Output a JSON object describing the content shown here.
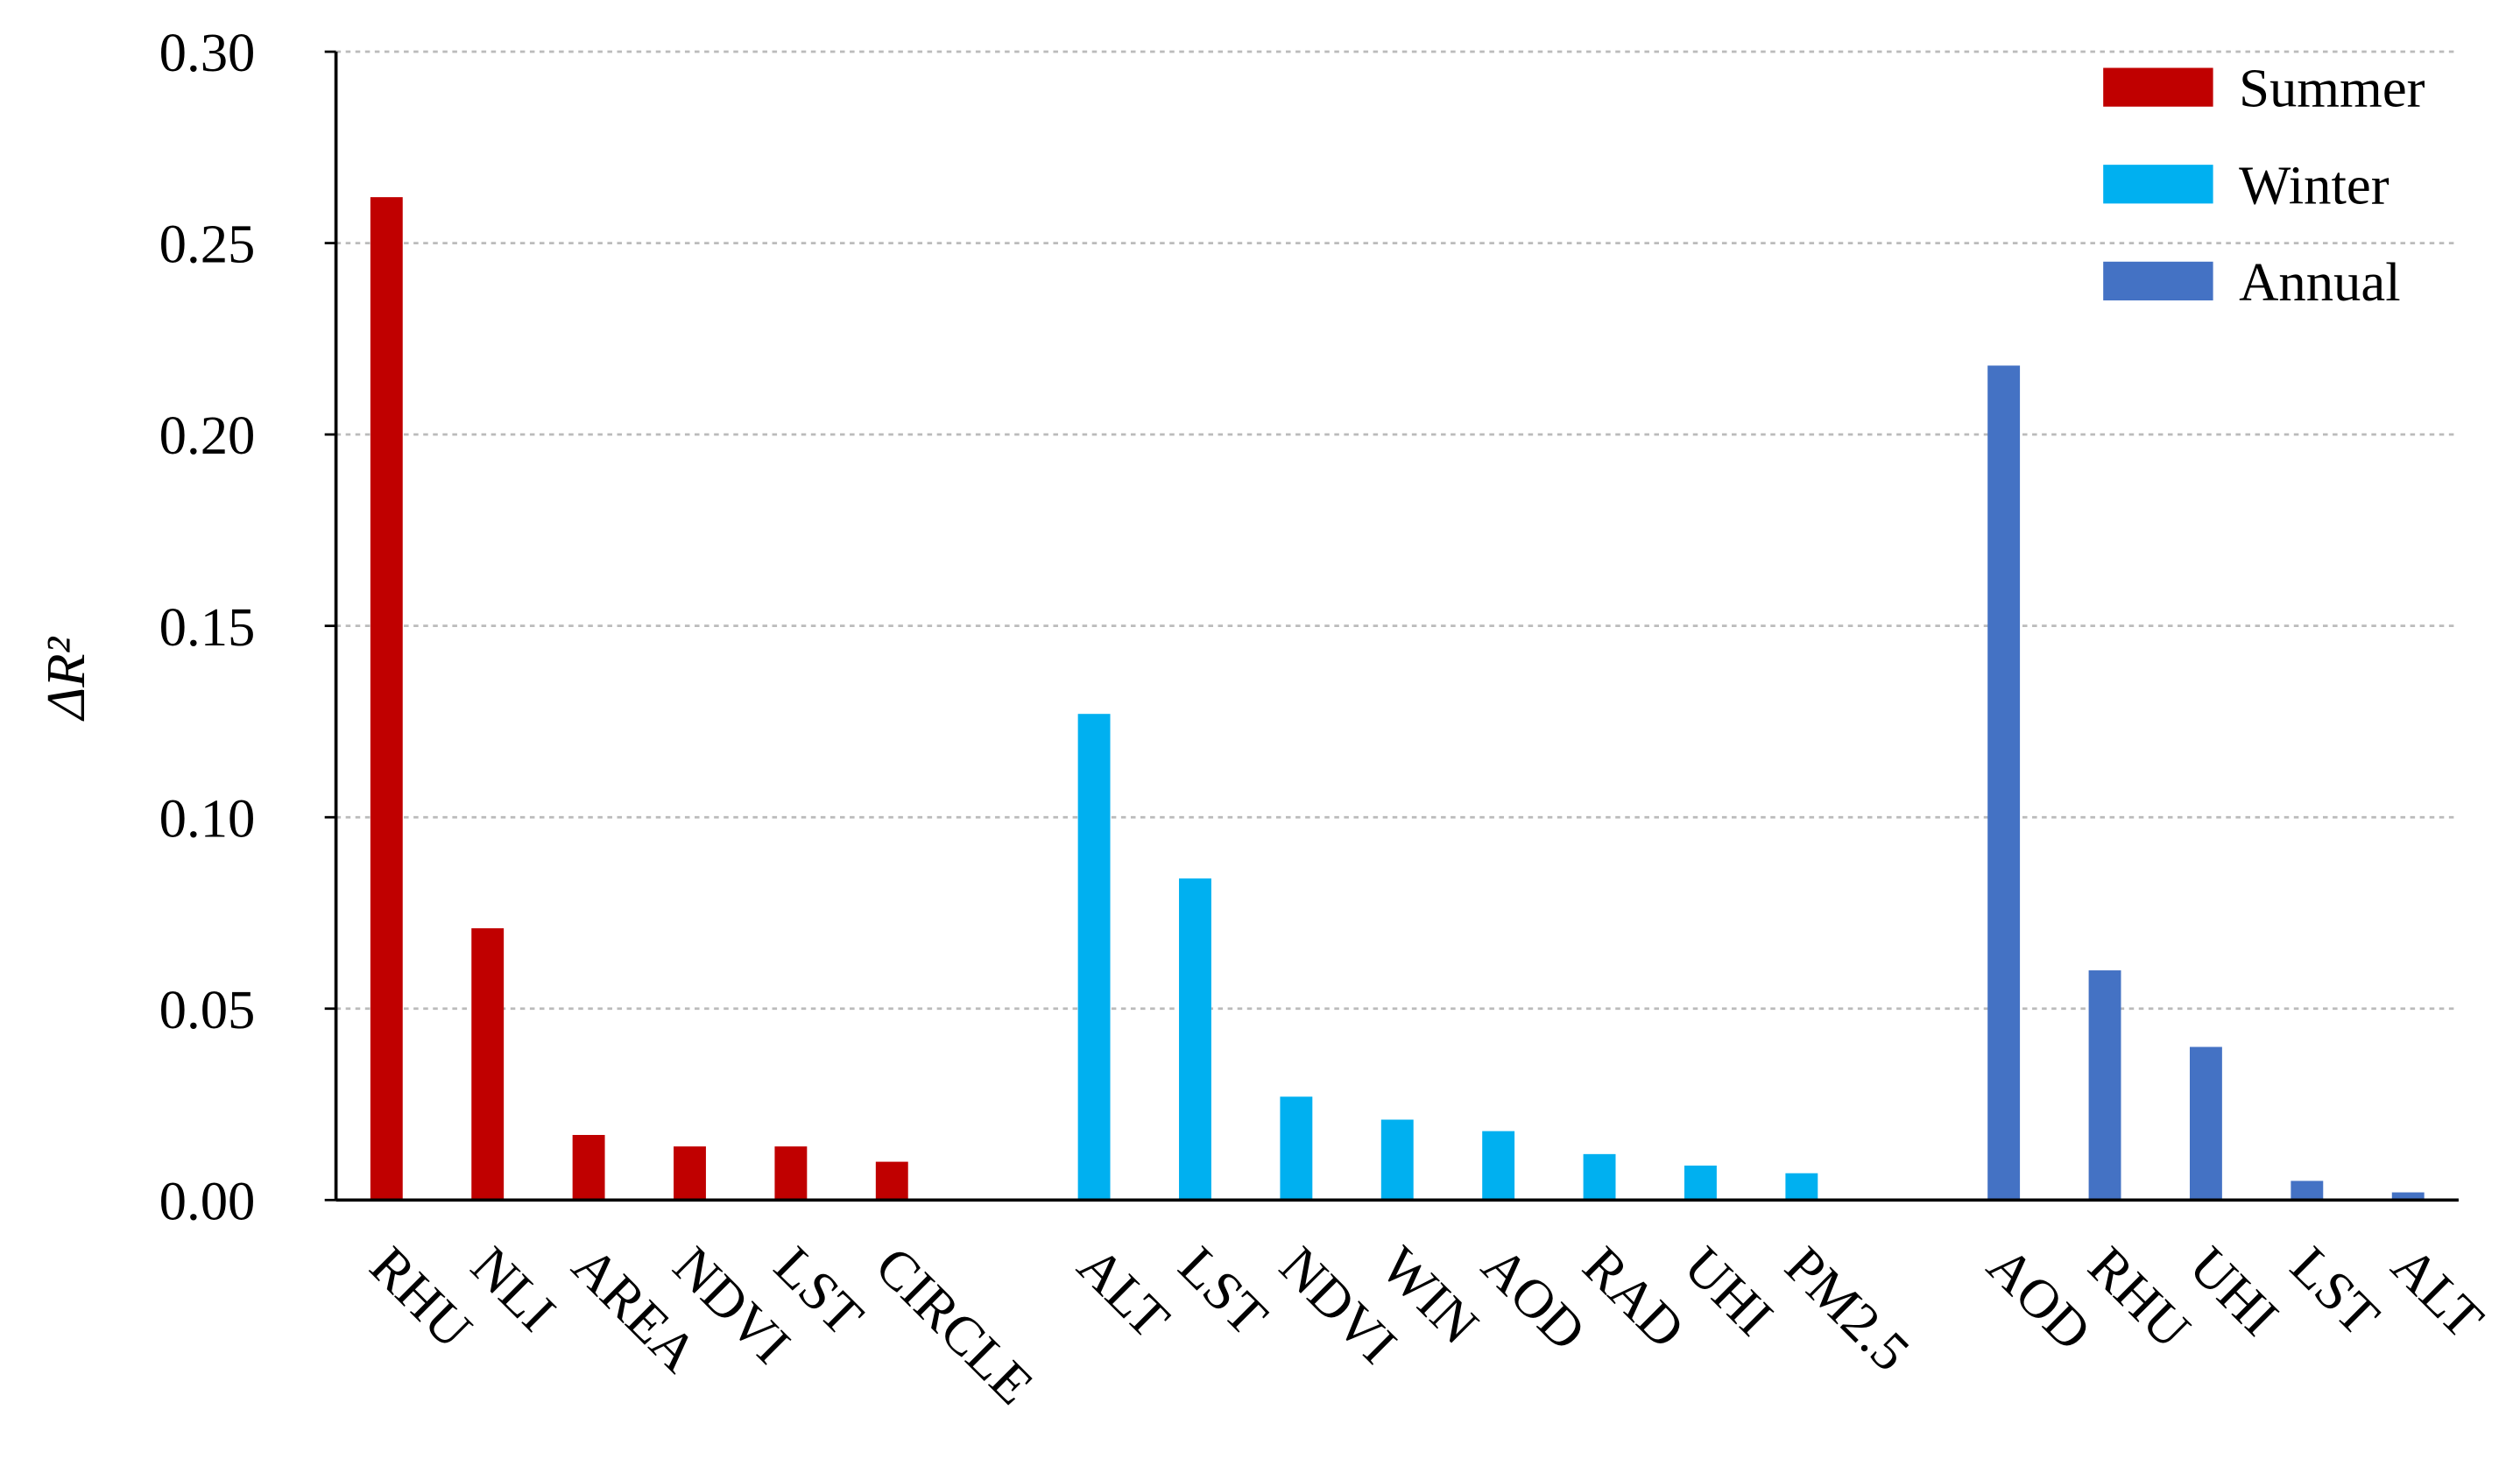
{
  "chart_data": {
    "type": "bar",
    "y_label": "ΔR²",
    "categories": [
      "RHU",
      "NLI",
      "AREA",
      "NDVI",
      "LST",
      "CIRCLE",
      null,
      "ALT",
      "LST",
      "NDVI",
      "WIN",
      "AOD",
      "RAD",
      "UHI",
      "PM2.5",
      null,
      "AOD",
      "RHU",
      "UHI",
      "LST",
      "ALT"
    ],
    "series": [
      {
        "name": "Summer",
        "color": "#c00000",
        "values": [
          0.262,
          0.071,
          0.017,
          0.014,
          0.014,
          0.01,
          null,
          null,
          null,
          null,
          null,
          null,
          null,
          null,
          null,
          null,
          null,
          null,
          null,
          null,
          null
        ]
      },
      {
        "name": "Winter",
        "color": "#00b0f0",
        "values": [
          null,
          null,
          null,
          null,
          null,
          null,
          null,
          0.127,
          0.084,
          0.027,
          0.021,
          0.018,
          0.012,
          0.009,
          0.007,
          null,
          null,
          null,
          null,
          null,
          null
        ]
      },
      {
        "name": "Annual",
        "color": "#4472c4",
        "values": [
          null,
          null,
          null,
          null,
          null,
          null,
          null,
          null,
          null,
          null,
          null,
          null,
          null,
          null,
          null,
          null,
          0.218,
          0.06,
          0.04,
          0.005,
          0.002
        ]
      }
    ],
    "ylim": [
      0,
      0.3
    ],
    "yticks": [
      {
        "value": 0,
        "label": "0.00"
      },
      {
        "value": 0.05,
        "label": "0.05"
      },
      {
        "value": 0.1,
        "label": "0.10"
      },
      {
        "value": 0.15,
        "label": "0.15"
      },
      {
        "value": 0.2,
        "label": "0.20"
      },
      {
        "value": 0.25,
        "label": "0.25"
      },
      {
        "value": 0.3,
        "label": "0.30"
      }
    ],
    "grid": true,
    "legend": "upper right"
  }
}
